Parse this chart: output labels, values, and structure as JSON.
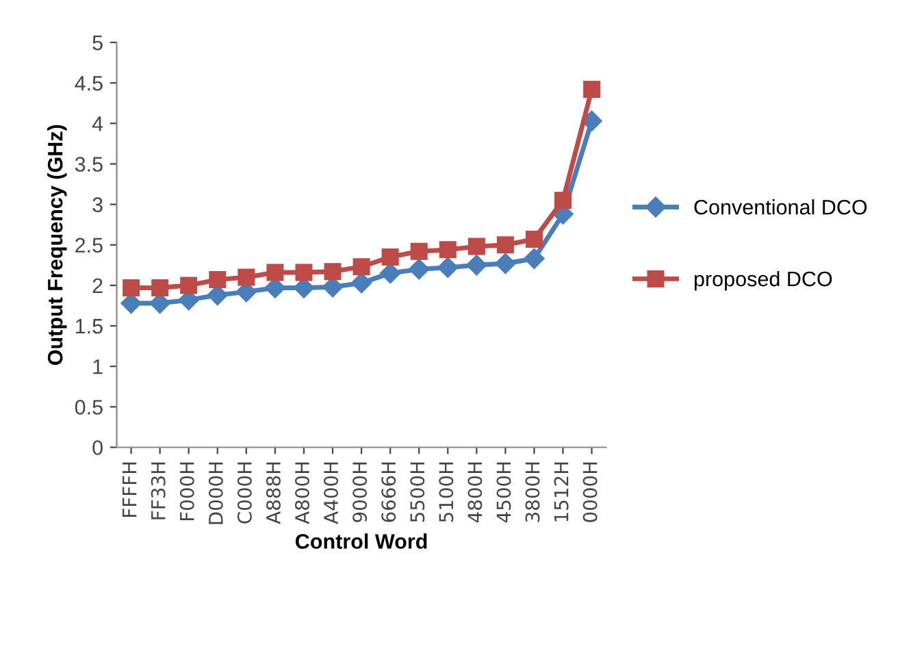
{
  "chart_data": {
    "type": "line",
    "xlabel": "Control Word",
    "ylabel": "Output Frequency (GHz)",
    "categories": [
      "FFFFH",
      "FF33H",
      "F000H",
      "D000H",
      "C000H",
      "A888H",
      "A800H",
      "A400H",
      "9000H",
      "6666H",
      "5500H",
      "5100H",
      "4800H",
      "4500H",
      "3800H",
      "1512H",
      "0000H"
    ],
    "series": [
      {
        "name": "Conventional DCO",
        "color": "#4a7ebb",
        "marker": "diamond",
        "values": [
          1.78,
          1.78,
          1.82,
          1.88,
          1.92,
          1.97,
          1.97,
          1.98,
          2.03,
          2.15,
          2.2,
          2.22,
          2.25,
          2.27,
          2.33,
          2.88,
          4.03
        ]
      },
      {
        "name": "proposed DCO",
        "color": "#be4b48",
        "marker": "square",
        "values": [
          1.97,
          1.97,
          2.0,
          2.07,
          2.1,
          2.16,
          2.16,
          2.17,
          2.23,
          2.35,
          2.42,
          2.44,
          2.48,
          2.5,
          2.57,
          3.05,
          4.42
        ]
      }
    ],
    "ylim": [
      0,
      5
    ],
    "yticks": [
      0,
      0.5,
      1,
      1.5,
      2,
      2.5,
      3,
      3.5,
      4,
      4.5,
      5
    ],
    "grid": false,
    "legend": "right"
  }
}
